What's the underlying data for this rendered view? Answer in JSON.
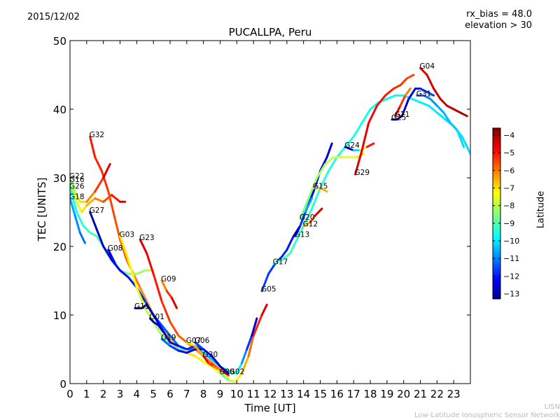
{
  "chart_data": {
    "type": "line",
    "date": "2015/12/02",
    "title": "PUCALLPA, Peru",
    "annotations": [
      "rx_bias = 48.0",
      "elevation > 30"
    ],
    "xlabel": "Time [UT]",
    "ylabel": "TEC [UNITS]",
    "xlim": [
      0,
      24
    ],
    "ylim": [
      0,
      50
    ],
    "xticks": [
      "0",
      "1",
      "2",
      "3",
      "4",
      "5",
      "6",
      "7",
      "8",
      "9",
      "10",
      "11",
      "12",
      "13",
      "14",
      "15",
      "16",
      "17",
      "18",
      "19",
      "20",
      "21",
      "22",
      "23"
    ],
    "yticks": [
      "0",
      "10",
      "20",
      "30",
      "40",
      "50"
    ],
    "colorbar": {
      "label": "Latitude",
      "range": [
        -13.3,
        -3.6
      ],
      "ticks": [
        "−4",
        "−5",
        "−6",
        "−7",
        "−8",
        "−9",
        "−10",
        "−11",
        "−12",
        "−13"
      ],
      "tick_values": [
        -4,
        -5,
        -6,
        -7,
        -8,
        -9,
        -10,
        -11,
        -12,
        -13
      ],
      "colormap": "jet"
    },
    "series": [
      {
        "name": "G32",
        "lat_start": -5.0,
        "lat_end": -7.5,
        "x": [
          1.2,
          1.5,
          1.9,
          2.3,
          2.7,
          3.0,
          3.4,
          3.8,
          4.2,
          4.6,
          5.0,
          5.5,
          6.0,
          6.5,
          7.0,
          7.5,
          8.0,
          8.5,
          9.0,
          9.5
        ],
        "y": [
          36,
          33,
          31,
          28,
          24,
          21,
          18,
          16,
          14,
          12,
          10,
          8,
          6.5,
          5,
          4.5,
          4,
          3.2,
          2.5,
          1.5,
          0.8
        ]
      },
      {
        "name": "G22",
        "lat_start": -8.5,
        "lat_end": -4.5,
        "x": [
          0.0,
          0.3,
          0.6,
          1.0,
          1.5,
          2.0,
          2.4
        ],
        "y": [
          30,
          28,
          26.5,
          26.5,
          28,
          30,
          32
        ]
      },
      {
        "name": "G16",
        "lat_start": -8.0,
        "lat_end": -4.5,
        "x": [
          0.0,
          0.3,
          0.7,
          1.0,
          1.5,
          2.0,
          2.5,
          3.0,
          3.3
        ],
        "y": [
          29.5,
          27,
          25,
          26,
          27,
          26.5,
          27.5,
          26.5,
          26.5
        ]
      },
      {
        "name": "G26",
        "lat_start": -9.5,
        "lat_end": -8.0,
        "x": [
          0.0,
          0.4,
          0.8,
          1.2,
          1.6,
          2.0,
          2.5,
          3.0,
          3.5,
          4.0,
          4.5,
          5.0
        ],
        "y": [
          28.5,
          25,
          23,
          22,
          21.5,
          20,
          18.5,
          16.5,
          16,
          16,
          16.5,
          16.5
        ]
      },
      {
        "name": "G18",
        "lat_start": -10.5,
        "lat_end": -11.0,
        "x": [
          0.0,
          0.3,
          0.6,
          0.9
        ],
        "y": [
          27,
          24.5,
          22,
          20.5
        ]
      },
      {
        "name": "G27",
        "lat_start": -12.8,
        "lat_end": -10.0,
        "x": [
          1.2,
          1.6,
          2.0,
          2.5,
          3.0,
          3.5,
          4.0,
          4.5,
          5.0,
          5.5,
          6.0,
          6.5,
          7.0,
          7.5,
          8.0,
          8.5,
          9.0,
          9.5
        ],
        "y": [
          25,
          22.5,
          20,
          18,
          16.5,
          15.5,
          14,
          12,
          10,
          8.5,
          7,
          5.5,
          5,
          5,
          4.5,
          3.5,
          2.5,
          1.8
        ]
      },
      {
        "name": "G03",
        "lat_start": -7.0,
        "lat_end": -9.0,
        "x": [
          3.0,
          3.5,
          4.0,
          4.5,
          5.0,
          5.5,
          6.0,
          6.5,
          7.0
        ],
        "y": [
          21.5,
          18,
          14,
          11,
          9,
          7,
          5.5,
          5,
          5
        ]
      },
      {
        "name": "G23",
        "lat_start": -4.5,
        "lat_end": -6.5,
        "x": [
          4.2,
          4.6,
          5.0,
          5.5,
          6.0,
          6.5,
          7.0,
          7.5,
          8.0,
          8.5
        ],
        "y": [
          21,
          19,
          16,
          12,
          9,
          7,
          6,
          5,
          4,
          3
        ]
      },
      {
        "name": "G08",
        "lat_start": -12.5,
        "lat_end": -12.0,
        "x": [
          2.3,
          2.5,
          2.7
        ],
        "y": [
          19.5,
          18.5,
          17.5
        ]
      },
      {
        "name": "G09",
        "lat_start": -6.0,
        "lat_end": -4.5,
        "x": [
          5.5,
          5.8,
          6.1,
          6.4
        ],
        "y": [
          15,
          13.5,
          12.5,
          11
        ]
      },
      {
        "name": "G11",
        "lat_start": -13.0,
        "lat_end": -11.0,
        "x": [
          3.9,
          4.3,
          4.6,
          5.0,
          5.5,
          6.0,
          6.5,
          7.0,
          7.5,
          8.0,
          8.5,
          9.0,
          9.5
        ],
        "y": [
          11,
          11,
          11.5,
          10,
          8,
          6,
          5.5,
          5,
          5.5,
          5,
          4,
          2.5,
          1.5
        ]
      },
      {
        "name": "G01",
        "lat_start": -13.0,
        "lat_end": -12.5,
        "x": [
          4.8,
          5.0,
          5.3,
          5.6
        ],
        "y": [
          9.5,
          9,
          8.5,
          7.5
        ]
      },
      {
        "name": "G19",
        "lat_start": -11.0,
        "lat_end": -13.0,
        "x": [
          5.5,
          6.0,
          6.5,
          7.0,
          7.5,
          8.0
        ],
        "y": [
          6.5,
          5.5,
          4.8,
          4.5,
          5,
          5
        ]
      },
      {
        "name": "G07",
        "lat_start": -7.0,
        "lat_end": -5.0,
        "x": [
          7.0,
          7.5,
          8.0,
          8.5,
          9.0,
          9.5
        ],
        "y": [
          6,
          5.5,
          4,
          3,
          2,
          1.2
        ]
      },
      {
        "name": "G06",
        "lat_start": -11.5,
        "lat_end": -13.0,
        "x": [
          7.5,
          8.0,
          8.5,
          9.0,
          9.5
        ],
        "y": [
          6,
          5,
          4,
          2.5,
          1.5
        ]
      },
      {
        "name": "G30",
        "lat_start": -4.5,
        "lat_end": -6.0,
        "x": [
          8.0,
          8.3,
          8.6,
          9.0
        ],
        "y": [
          4,
          3,
          2.5,
          2
        ]
      },
      {
        "name": "G28",
        "lat_start": -8.5,
        "lat_end": -4.5,
        "x": [
          9.0,
          9.5,
          9.9,
          10.3,
          10.7,
          11.0,
          11.5,
          11.8
        ],
        "y": [
          1.5,
          0.5,
          0.3,
          1.5,
          4,
          7,
          10,
          11.5
        ]
      },
      {
        "name": "G02",
        "lat_start": -9.0,
        "lat_end": -12.5,
        "x": [
          9.6,
          10.0,
          10.3,
          10.6,
          10.9,
          11.2
        ],
        "y": [
          1.5,
          1.5,
          3,
          5,
          7,
          9.5
        ]
      },
      {
        "name": "G05",
        "lat_start": -11.5,
        "lat_end": -12.5,
        "x": [
          11.5,
          11.9,
          12.3,
          12.7,
          13.0,
          13.4,
          13.8,
          14.2,
          14.6,
          15.0,
          15.4,
          15.7
        ],
        "y": [
          13.5,
          16,
          17.5,
          18.5,
          19.5,
          21.5,
          23,
          25.5,
          28,
          31,
          33,
          35
        ]
      },
      {
        "name": "G17",
        "lat_start": -9.0,
        "lat_end": -10.0,
        "x": [
          12.2,
          12.7,
          13.2,
          13.6,
          14.0,
          14.5,
          15.0,
          15.5,
          16.0,
          16.5,
          17.0,
          17.5,
          18.0,
          18.5,
          19.0,
          19.5,
          20.0,
          20.5,
          21.0,
          21.5,
          22.0,
          22.5,
          23.0,
          23.5,
          24.0
        ],
        "y": [
          17.5,
          18,
          19,
          21,
          23,
          25.5,
          28.5,
          31,
          33,
          34.5,
          36,
          38,
          40,
          41,
          41.5,
          42,
          42,
          41.5,
          41,
          40.5,
          39.5,
          38.5,
          37.5,
          36,
          33.5
        ]
      },
      {
        "name": "G13",
        "lat_start": -12.5,
        "lat_end": -10.5,
        "x": [
          13.5,
          13.8,
          14.1,
          14.5
        ],
        "y": [
          21.5,
          23,
          25,
          27
        ]
      },
      {
        "name": "G12",
        "lat_start": -6.5,
        "lat_end": -4.5,
        "x": [
          14.0,
          14.4,
          14.7,
          15.1
        ],
        "y": [
          23,
          23.5,
          24.5,
          25.5
        ]
      },
      {
        "name": "G20",
        "lat_start": -8.5,
        "lat_end": -7.0,
        "x": [
          13.8,
          14.3,
          14.8,
          15.3,
          15.8,
          16.3,
          16.8,
          17.2,
          17.6
        ],
        "y": [
          24,
          27,
          30,
          32,
          33,
          33,
          33,
          33,
          33.5
        ]
      },
      {
        "name": "G15",
        "lat_start": -7.0,
        "lat_end": -6.5,
        "x": [
          14.6,
          15.0,
          15.4
        ],
        "y": [
          28.5,
          28.5,
          28
        ]
      },
      {
        "name": "G24",
        "lat_start": -12.5,
        "lat_end": -5.0,
        "x": [
          16.5,
          17.0,
          17.4,
          17.8,
          18.2
        ],
        "y": [
          34.5,
          34,
          34,
          34.5,
          35
        ]
      },
      {
        "name": "G29",
        "lat_start": -4.5,
        "lat_end": -5.5,
        "x": [
          17.1,
          17.5,
          17.9,
          18.4,
          18.9,
          19.4,
          19.8,
          20.2,
          20.6
        ],
        "y": [
          30.5,
          34,
          38,
          40.5,
          42,
          43,
          43.5,
          44.5,
          45
        ]
      },
      {
        "name": "G25",
        "lat_start": -13.0,
        "lat_end": -11.5,
        "x": [
          19.3,
          19.6,
          19.9,
          20.3,
          20.7,
          21.0,
          21.4,
          21.8
        ],
        "y": [
          38.5,
          38.5,
          39,
          41.5,
          43,
          43,
          42.5,
          42
        ]
      },
      {
        "name": "G21",
        "lat_start": -4.5,
        "lat_end": -6.0,
        "x": [
          19.5,
          19.8,
          20.1,
          20.4
        ],
        "y": [
          39,
          40.5,
          42,
          43
        ]
      },
      {
        "name": "G31",
        "lat_start": -11.0,
        "lat_end": -10.0,
        "x": [
          20.8,
          21.2,
          21.6,
          22.0,
          22.4,
          22.8,
          23.2,
          23.6
        ],
        "y": [
          42,
          42,
          41.5,
          40.5,
          39.5,
          38,
          37,
          34.5
        ]
      },
      {
        "name": "G04",
        "lat_start": -4.5,
        "lat_end": -4.0,
        "x": [
          21.0,
          21.4,
          21.8,
          22.2,
          22.6,
          23.0,
          23.4,
          23.8
        ],
        "y": [
          46,
          45,
          43,
          41.5,
          40.5,
          40,
          39.5,
          39
        ]
      }
    ]
  },
  "footer": {
    "network_short": "LISN",
    "network_long": "Low-Latitude Ionospheric Sensor Network"
  }
}
